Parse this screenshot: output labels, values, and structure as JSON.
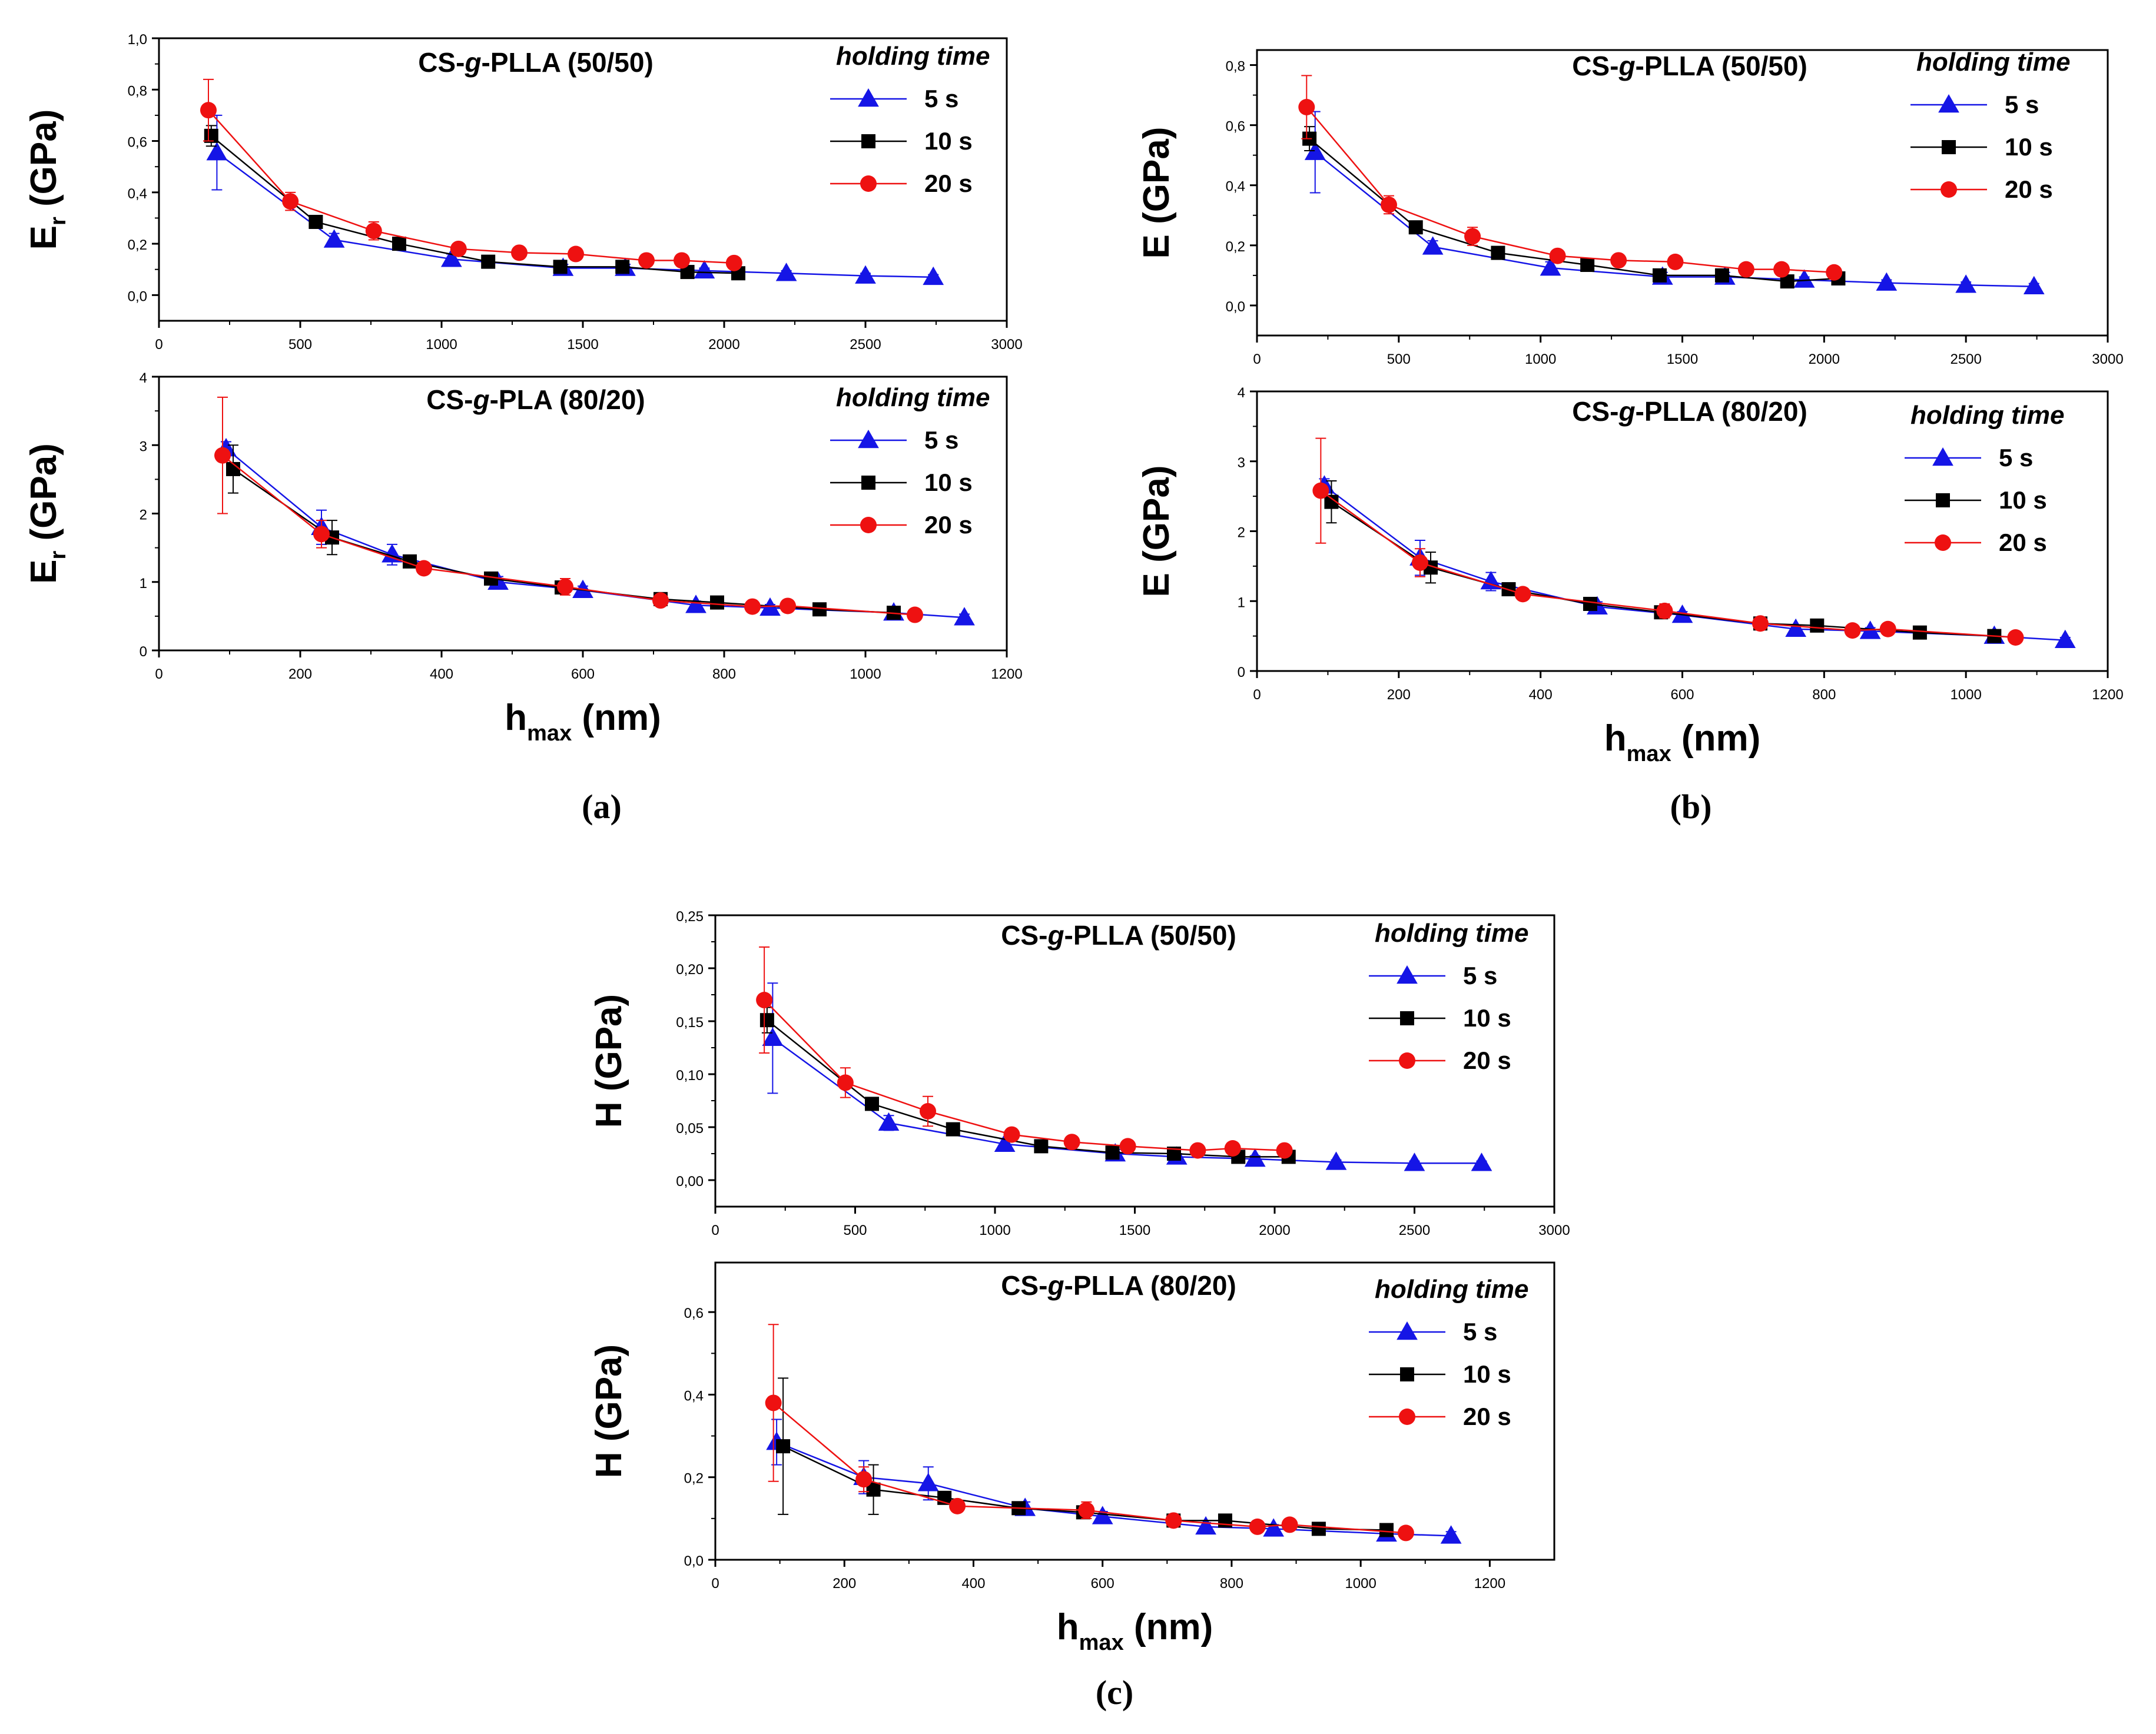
{
  "captions": [
    "(a)",
    "(b)",
    "(c)"
  ],
  "holding_time_label": "holding time",
  "series_names": [
    "5 s",
    "10 s",
    "20 s"
  ],
  "colors": {
    "5 s": "#1515e6",
    "10 s": "#000000",
    "20 s": "#ee1111"
  },
  "chart_data": [
    {
      "id": "a-top",
      "type": "line",
      "figure": "(a)",
      "title_parts": [
        "CS-",
        "g",
        "-PLLA (50/50)"
      ],
      "ylabel_main": "E",
      "ylabel_sub": "r",
      "ylabel_rest": " (GPa)",
      "xlabel": "",
      "xlim": [
        0,
        3000
      ],
      "ylim": [
        -0.1,
        1.0
      ],
      "xticks": [
        0,
        500,
        1000,
        1500,
        2000,
        2500,
        3000
      ],
      "xtick_labels": [
        "0",
        "500",
        "1000",
        "1500",
        "2000",
        "2500",
        "3000"
      ],
      "yticks": [
        0,
        0.2,
        0.4,
        0.6,
        0.8,
        1.0
      ],
      "ytick_labels": [
        "0,0",
        "0,2",
        "0,4",
        "0,6",
        "0,8",
        "1,0"
      ],
      "series": [
        {
          "name": "5 s",
          "marker": "triangle",
          "x": [
            205,
            620,
            1035,
            1430,
            1650,
            1930,
            2220,
            2500,
            2740
          ],
          "y": [
            0.555,
            0.215,
            0.14,
            0.105,
            0.105,
            0.095,
            0.085,
            0.075,
            0.07
          ],
          "err": [
            0.145,
            0.025,
            0.02,
            0.015,
            0.015,
            0.01,
            0.01,
            0.01,
            0.01
          ]
        },
        {
          "name": "10 s",
          "marker": "square",
          "x": [
            185,
            555,
            850,
            1165,
            1420,
            1640,
            1870,
            2050
          ],
          "y": [
            0.62,
            0.285,
            0.2,
            0.13,
            0.11,
            0.11,
            0.09,
            0.085
          ],
          "err": [
            0.04,
            0.02,
            0.015,
            0.01,
            0.01,
            0.01,
            0.01,
            0.01
          ]
        },
        {
          "name": "20 s",
          "marker": "circle",
          "x": [
            175,
            465,
            760,
            1060,
            1275,
            1475,
            1725,
            1850,
            2035
          ],
          "y": [
            0.72,
            0.365,
            0.25,
            0.18,
            0.165,
            0.16,
            0.135,
            0.135,
            0.125
          ],
          "err": [
            0.12,
            0.035,
            0.035,
            0.015,
            0.01,
            0.01,
            0.01,
            0.01,
            0.01
          ]
        }
      ]
    },
    {
      "id": "a-bottom",
      "type": "line",
      "figure": "(a)",
      "title_parts": [
        "CS-",
        "g",
        "-PLA (80/20)"
      ],
      "ylabel_main": "E",
      "ylabel_sub": "r",
      "ylabel_rest": " (GPa)",
      "xlabel_main": "h",
      "xlabel_sub": "max",
      "xlabel_rest": " (nm)",
      "xlim": [
        0,
        1200
      ],
      "ylim": [
        0,
        4
      ],
      "xticks": [
        0,
        200,
        400,
        600,
        800,
        1000,
        1200
      ],
      "xtick_labels": [
        "0",
        "200",
        "400",
        "600",
        "800",
        "1000",
        "1200"
      ],
      "yticks": [
        0,
        1,
        2,
        3,
        4
      ],
      "ytick_labels": [
        "0",
        "1",
        "2",
        "3",
        "4"
      ],
      "series": [
        {
          "name": "5 s",
          "marker": "triangle",
          "x": [
            95,
            230,
            330,
            480,
            600,
            760,
            865,
            1040,
            1140
          ],
          "y": [
            2.95,
            1.8,
            1.4,
            1.0,
            0.88,
            0.66,
            0.62,
            0.55,
            0.48
          ],
          "err": [
            0.1,
            0.25,
            0.15,
            0.08,
            0.06,
            0.06,
            0.05,
            0.06,
            0.05
          ]
        },
        {
          "name": "10 s",
          "marker": "square",
          "x": [
            105,
            245,
            355,
            470,
            570,
            710,
            790,
            935,
            1040
          ],
          "y": [
            2.65,
            1.65,
            1.3,
            1.05,
            0.92,
            0.75,
            0.7,
            0.6,
            0.55
          ],
          "err": [
            0.35,
            0.25,
            0.06,
            0.05,
            0.05,
            0.04,
            0.04,
            0.04,
            0.04
          ]
        },
        {
          "name": "20 s",
          "marker": "circle",
          "x": [
            90,
            230,
            375,
            575,
            710,
            840,
            890,
            1070
          ],
          "y": [
            2.85,
            1.7,
            1.2,
            0.93,
            0.73,
            0.64,
            0.65,
            0.52
          ],
          "err": [
            0.85,
            0.2,
            0.05,
            0.12,
            0.04,
            0.04,
            0.04,
            0.04
          ]
        }
      ]
    },
    {
      "id": "b-top",
      "type": "line",
      "figure": "(b)",
      "title_parts": [
        "CS-",
        "g",
        "-PLLA (50/50)"
      ],
      "ylabel_main": "E",
      "ylabel_sub": "",
      "ylabel_rest": " (GPa)",
      "xlabel": "",
      "xlim": [
        0,
        3000
      ],
      "ylim": [
        -0.1,
        0.85
      ],
      "xticks": [
        0,
        500,
        1000,
        1500,
        2000,
        2500,
        3000
      ],
      "xtick_labels": [
        "0",
        "500",
        "1000",
        "1500",
        "2000",
        "2500",
        "3000"
      ],
      "yticks": [
        0,
        0.2,
        0.4,
        0.6,
        0.8
      ],
      "ytick_labels": [
        "0,0",
        "0,2",
        "0,4",
        "0,6",
        "0,8"
      ],
      "series": [
        {
          "name": "5 s",
          "marker": "triangle",
          "x": [
            205,
            620,
            1035,
            1430,
            1650,
            1930,
            2220,
            2500,
            2740
          ],
          "y": [
            0.51,
            0.195,
            0.125,
            0.095,
            0.095,
            0.085,
            0.075,
            0.068,
            0.063
          ],
          "err": [
            0.135,
            0.02,
            0.02,
            0.015,
            0.015,
            0.01,
            0.01,
            0.01,
            0.01
          ]
        },
        {
          "name": "10 s",
          "marker": "square",
          "x": [
            185,
            560,
            850,
            1165,
            1420,
            1640,
            1870,
            2050
          ],
          "y": [
            0.555,
            0.26,
            0.175,
            0.135,
            0.1,
            0.1,
            0.08,
            0.09
          ],
          "err": [
            0.04,
            0.02,
            0.015,
            0.01,
            0.01,
            0.01,
            0.01,
            0.01
          ]
        },
        {
          "name": "20 s",
          "marker": "circle",
          "x": [
            175,
            465,
            760,
            1060,
            1275,
            1475,
            1725,
            1850,
            2035
          ],
          "y": [
            0.66,
            0.335,
            0.23,
            0.165,
            0.15,
            0.145,
            0.12,
            0.12,
            0.11
          ],
          "err": [
            0.105,
            0.03,
            0.03,
            0.015,
            0.01,
            0.01,
            0.01,
            0.01,
            0.01
          ]
        }
      ]
    },
    {
      "id": "b-bottom",
      "type": "line",
      "figure": "(b)",
      "title_parts": [
        "CS-",
        "g",
        "-PLLA (80/20)"
      ],
      "ylabel_main": "E",
      "ylabel_sub": "",
      "ylabel_rest": " (GPa)",
      "xlabel_main": "h",
      "xlabel_sub": "max",
      "xlabel_rest": " (nm)",
      "xlim": [
        0,
        1200
      ],
      "ylim": [
        0,
        4
      ],
      "xticks": [
        0,
        200,
        400,
        600,
        800,
        1000,
        1200
      ],
      "xtick_labels": [
        "0",
        "200",
        "400",
        "600",
        "800",
        "1000",
        "1200"
      ],
      "yticks": [
        0,
        1,
        2,
        3,
        4
      ],
      "ytick_labels": [
        "0",
        "1",
        "2",
        "3",
        "4"
      ],
      "series": [
        {
          "name": "5 s",
          "marker": "triangle",
          "x": [
            95,
            230,
            330,
            480,
            600,
            760,
            865,
            1040,
            1140
          ],
          "y": [
            2.65,
            1.62,
            1.28,
            0.92,
            0.8,
            0.6,
            0.57,
            0.5,
            0.44
          ],
          "err": [
            0.1,
            0.25,
            0.13,
            0.07,
            0.05,
            0.05,
            0.05,
            0.05,
            0.04
          ]
        },
        {
          "name": "10 s",
          "marker": "square",
          "x": [
            105,
            245,
            355,
            470,
            570,
            710,
            790,
            935,
            1040
          ],
          "y": [
            2.42,
            1.48,
            1.17,
            0.96,
            0.84,
            0.68,
            0.65,
            0.55,
            0.5
          ],
          "err": [
            0.3,
            0.22,
            0.06,
            0.05,
            0.05,
            0.04,
            0.04,
            0.04,
            0.04
          ]
        },
        {
          "name": "20 s",
          "marker": "circle",
          "x": [
            90,
            230,
            375,
            575,
            710,
            840,
            890,
            1070
          ],
          "y": [
            2.58,
            1.55,
            1.1,
            0.86,
            0.68,
            0.58,
            0.6,
            0.48
          ],
          "err": [
            0.75,
            0.2,
            0.05,
            0.1,
            0.04,
            0.04,
            0.04,
            0.04
          ]
        }
      ]
    },
    {
      "id": "c-top",
      "type": "line",
      "figure": "(c)",
      "title_parts": [
        "CS-",
        "g",
        "-PLLA (50/50)"
      ],
      "ylabel_main": "H",
      "ylabel_sub": "",
      "ylabel_rest": " (GPa)",
      "xlabel": "",
      "xlim": [
        0,
        3000
      ],
      "ylim": [
        -0.025,
        0.25
      ],
      "xticks": [
        0,
        500,
        1000,
        1500,
        2000,
        2500,
        3000
      ],
      "xtick_labels": [
        "0",
        "500",
        "1000",
        "1500",
        "2000",
        "2500",
        "3000"
      ],
      "yticks": [
        0,
        0.05,
        0.1,
        0.15,
        0.2,
        0.25
      ],
      "ytick_labels": [
        "0,00",
        "0,05",
        "0,10",
        "0,15",
        "0,20",
        "0,25"
      ],
      "series": [
        {
          "name": "5 s",
          "marker": "triangle",
          "x": [
            205,
            620,
            1035,
            1430,
            1650,
            1930,
            2220,
            2500,
            2740
          ],
          "y": [
            0.134,
            0.054,
            0.034,
            0.025,
            0.022,
            0.02,
            0.017,
            0.016,
            0.016
          ],
          "err": [
            0.052,
            0.007,
            0.005,
            0.004,
            0.003,
            0.003,
            0.002,
            0.002,
            0.002
          ]
        },
        {
          "name": "10 s",
          "marker": "square",
          "x": [
            185,
            560,
            850,
            1165,
            1420,
            1640,
            1870,
            2050
          ],
          "y": [
            0.151,
            0.072,
            0.048,
            0.032,
            0.026,
            0.025,
            0.022,
            0.022
          ],
          "err": [
            0.012,
            0.005,
            0.004,
            0.003,
            0.002,
            0.002,
            0.002,
            0.002
          ]
        },
        {
          "name": "20 s",
          "marker": "circle",
          "x": [
            175,
            465,
            760,
            1060,
            1275,
            1475,
            1725,
            1850,
            2035
          ],
          "y": [
            0.17,
            0.092,
            0.065,
            0.043,
            0.036,
            0.032,
            0.028,
            0.03,
            0.028
          ],
          "err": [
            0.05,
            0.014,
            0.014,
            0.003,
            0.002,
            0.002,
            0.002,
            0.002,
            0.002
          ]
        }
      ]
    },
    {
      "id": "c-bottom",
      "type": "line",
      "figure": "(c)",
      "title_parts": [
        "CS-",
        "g",
        "-PLLA (80/20)"
      ],
      "ylabel_main": "H",
      "ylabel_sub": "",
      "ylabel_rest": " (GPa)",
      "xlabel_main": "h",
      "xlabel_sub": "max",
      "xlabel_rest": " (nm)",
      "xlim": [
        0,
        1300
      ],
      "ylim": [
        0,
        0.72
      ],
      "xticks": [
        0,
        200,
        400,
        600,
        800,
        1000,
        1200
      ],
      "xtick_labels": [
        "0",
        "200",
        "400",
        "600",
        "800",
        "1000",
        "1200"
      ],
      "yticks": [
        0,
        0.2,
        0.4,
        0.6
      ],
      "ytick_labels": [
        "0,0",
        "0,2",
        "0,4",
        "0,6"
      ],
      "series": [
        {
          "name": "5 s",
          "marker": "triangle",
          "x": [
            95,
            230,
            330,
            480,
            600,
            760,
            865,
            1040,
            1140
          ],
          "y": [
            0.285,
            0.2,
            0.185,
            0.125,
            0.105,
            0.08,
            0.075,
            0.063,
            0.058
          ],
          "err": [
            0.055,
            0.04,
            0.04,
            0.015,
            0.012,
            0.01,
            0.01,
            0.01,
            0.01
          ]
        },
        {
          "name": "10 s",
          "marker": "square",
          "x": [
            105,
            245,
            355,
            470,
            570,
            710,
            790,
            935,
            1040
          ],
          "y": [
            0.275,
            0.17,
            0.15,
            0.125,
            0.115,
            0.095,
            0.095,
            0.075,
            0.072
          ],
          "err": [
            0.165,
            0.06,
            0.01,
            0.01,
            0.01,
            0.008,
            0.008,
            0.008,
            0.008
          ]
        },
        {
          "name": "20 s",
          "marker": "circle",
          "x": [
            90,
            230,
            375,
            575,
            710,
            840,
            890,
            1070
          ],
          "y": [
            0.38,
            0.195,
            0.13,
            0.12,
            0.095,
            0.08,
            0.085,
            0.065
          ],
          "err": [
            0.19,
            0.03,
            0.01,
            0.02,
            0.008,
            0.008,
            0.008,
            0.008
          ]
        }
      ]
    }
  ]
}
